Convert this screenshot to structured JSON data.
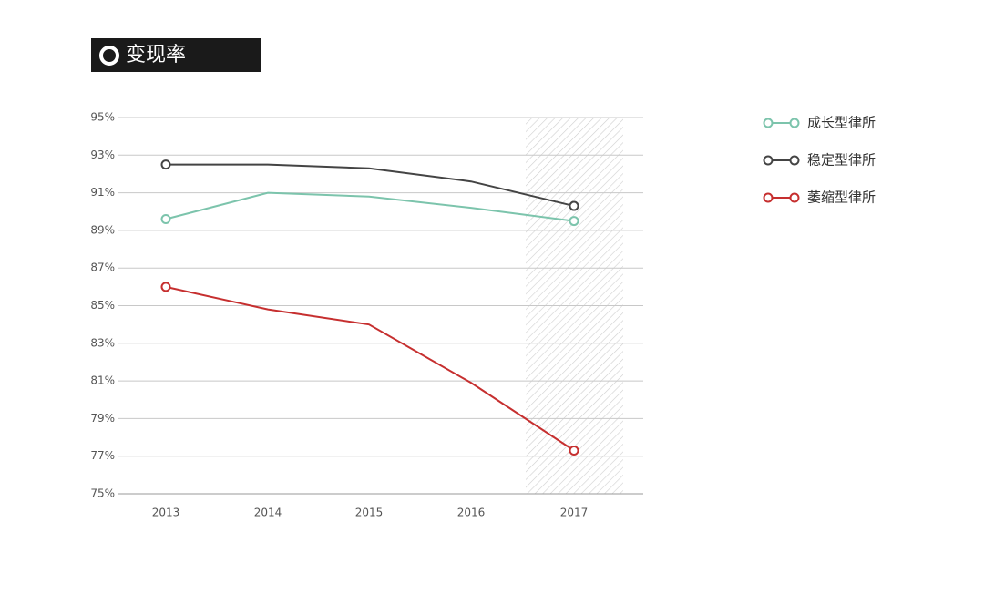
{
  "chart_data": {
    "type": "line",
    "title": "变现率",
    "categories": [
      "2013",
      "2014",
      "2015",
      "2016",
      "2017"
    ],
    "series": [
      {
        "name": "成长型律所",
        "color": "#7cc4ac",
        "values": [
          89.6,
          91.0,
          90.8,
          90.2,
          89.5
        ]
      },
      {
        "name": "稳定型律所",
        "color": "#444444",
        "values": [
          92.5,
          92.5,
          92.3,
          91.6,
          90.3
        ]
      },
      {
        "name": "萎缩型律所",
        "color": "#c62f2f",
        "values": [
          86.0,
          84.8,
          84.0,
          80.9,
          77.3
        ]
      }
    ],
    "ylim": [
      75,
      95
    ],
    "yticks": [
      {
        "value": 95,
        "label": "95%"
      },
      {
        "value": 93,
        "label": "93%"
      },
      {
        "value": 91,
        "label": "91%"
      },
      {
        "value": 89,
        "label": "89%"
      },
      {
        "value": 87,
        "label": "87%"
      },
      {
        "value": 85,
        "label": "85%"
      },
      {
        "value": 83,
        "label": "83%"
      },
      {
        "value": 81,
        "label": "81%"
      },
      {
        "value": 79,
        "label": "79%"
      },
      {
        "value": 77,
        "label": "77%"
      },
      {
        "value": 75,
        "label": "75%"
      }
    ],
    "grid": true,
    "legend": "right"
  }
}
